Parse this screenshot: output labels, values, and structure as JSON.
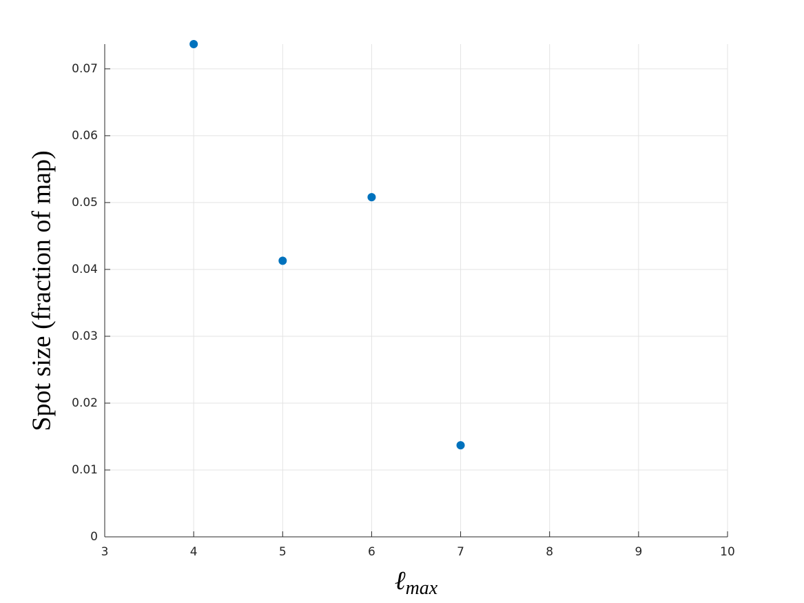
{
  "chart_data": {
    "type": "scatter",
    "xlabel": "ℓ",
    "xlabel_subscript": "max",
    "ylabel": "Spot size (fraction of map)",
    "series": [
      {
        "x": [
          4,
          5,
          6,
          7
        ],
        "values": [
          0.0737,
          0.0413,
          0.0508,
          0.0137
        ],
        "color": "#0072BD"
      }
    ],
    "xlim": [
      3,
      10
    ],
    "xticks": [
      3,
      4,
      5,
      6,
      7,
      8,
      9,
      10
    ],
    "ylim": [
      0,
      0.0737
    ],
    "yticks": [
      0,
      0.01,
      0.02,
      0.03,
      0.04,
      0.05,
      0.06,
      0.07
    ],
    "grid": true
  }
}
